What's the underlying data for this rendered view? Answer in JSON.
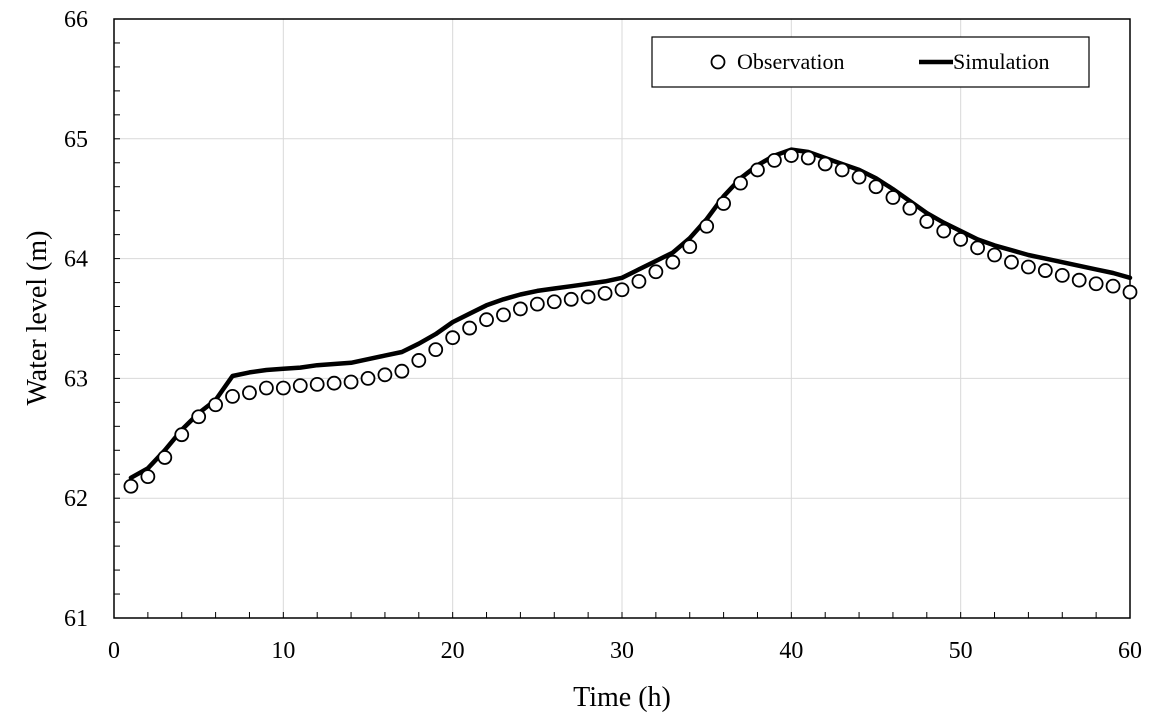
{
  "chart_data": {
    "type": "line",
    "title": "",
    "xlabel": "Time (h)",
    "ylabel": "Water level (m)",
    "xlim": [
      0,
      60
    ],
    "ylim": [
      61,
      66
    ],
    "x_ticks": [
      0,
      10,
      20,
      30,
      40,
      50,
      60
    ],
    "y_ticks": [
      61,
      62,
      63,
      64,
      65,
      66
    ],
    "x_minor_step": 2,
    "y_minor_step": 0.2,
    "grid": true,
    "legend_position": "top-right",
    "series": [
      {
        "name": "Observation",
        "marker": "open-circle",
        "color": "#000000",
        "x": [
          1,
          2,
          3,
          4,
          5,
          6,
          7,
          8,
          9,
          10,
          11,
          12,
          13,
          14,
          15,
          16,
          17,
          18,
          19,
          20,
          21,
          22,
          23,
          24,
          25,
          26,
          27,
          28,
          29,
          30,
          31,
          32,
          33,
          34,
          35,
          36,
          37,
          38,
          39,
          40,
          41,
          42,
          43,
          44,
          45,
          46,
          47,
          48,
          49,
          50,
          51,
          52,
          53,
          54,
          55,
          56,
          57,
          58,
          59,
          60
        ],
        "y": [
          62.1,
          62.18,
          62.34,
          62.53,
          62.68,
          62.78,
          62.85,
          62.88,
          62.92,
          62.92,
          62.94,
          62.95,
          62.96,
          62.97,
          63.0,
          63.03,
          63.06,
          63.15,
          63.24,
          63.34,
          63.42,
          63.49,
          63.53,
          63.58,
          63.62,
          63.64,
          63.66,
          63.68,
          63.71,
          63.74,
          63.81,
          63.89,
          63.97,
          64.1,
          64.27,
          64.46,
          64.63,
          64.74,
          64.82,
          64.86,
          64.84,
          64.79,
          64.74,
          64.68,
          64.6,
          64.51,
          64.42,
          64.31,
          64.23,
          64.16,
          64.09,
          64.03,
          63.97,
          63.93,
          63.9,
          63.86,
          63.82,
          63.79,
          63.77,
          63.72
        ]
      },
      {
        "name": "Simulation",
        "marker": "line",
        "color": "#000000",
        "x": [
          1,
          2,
          3,
          4,
          5,
          6,
          7,
          8,
          9,
          10,
          11,
          12,
          13,
          14,
          15,
          16,
          17,
          18,
          19,
          20,
          21,
          22,
          23,
          24,
          25,
          26,
          27,
          28,
          29,
          30,
          31,
          32,
          33,
          34,
          35,
          36,
          37,
          38,
          39,
          40,
          41,
          42,
          43,
          44,
          45,
          46,
          47,
          48,
          49,
          50,
          51,
          52,
          53,
          54,
          55,
          56,
          57,
          58,
          59,
          60
        ],
        "y": [
          62.17,
          62.25,
          62.4,
          62.57,
          62.71,
          62.82,
          63.02,
          63.05,
          63.07,
          63.08,
          63.09,
          63.11,
          63.12,
          63.13,
          63.16,
          63.19,
          63.22,
          63.29,
          63.37,
          63.47,
          63.54,
          63.61,
          63.66,
          63.7,
          63.73,
          63.75,
          63.77,
          63.79,
          63.81,
          63.84,
          63.91,
          63.98,
          64.05,
          64.17,
          64.33,
          64.52,
          64.67,
          64.78,
          64.86,
          64.91,
          64.89,
          64.84,
          64.79,
          64.74,
          64.67,
          64.58,
          64.48,
          64.38,
          64.3,
          64.23,
          64.16,
          64.11,
          64.07,
          64.03,
          64.0,
          63.97,
          63.94,
          63.91,
          63.88,
          63.84
        ]
      }
    ]
  }
}
